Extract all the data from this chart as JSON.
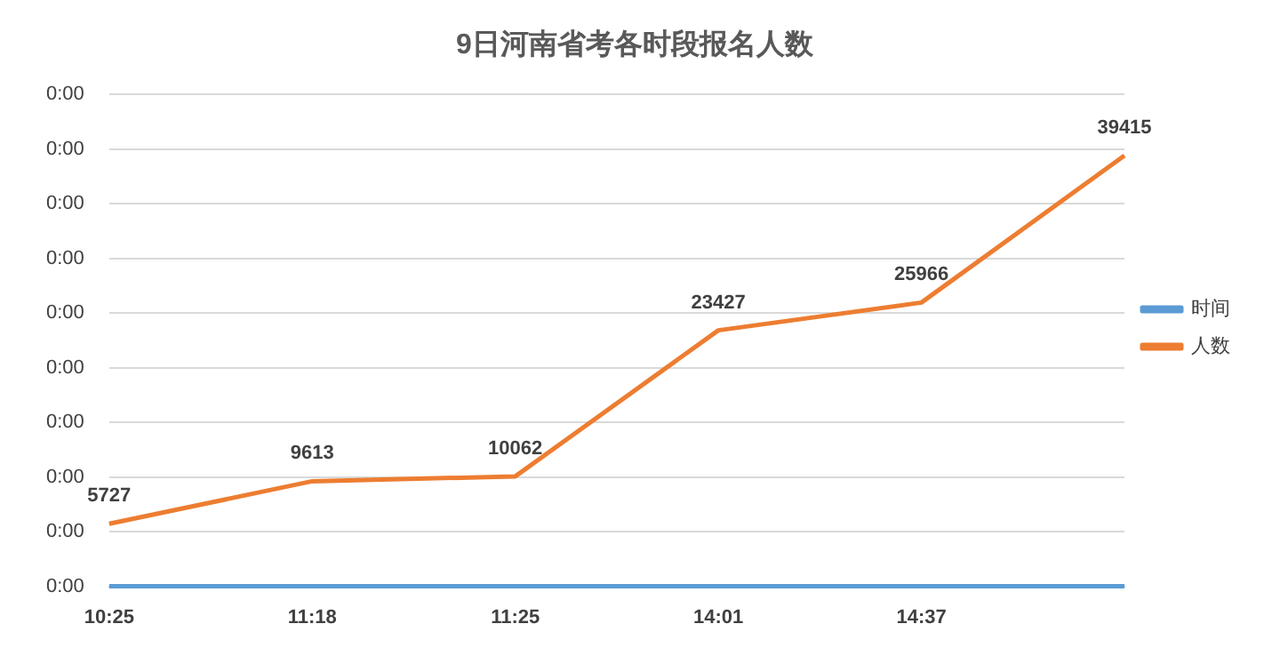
{
  "chart_data": {
    "type": "line",
    "title": "9日河南省考各时段报名人数",
    "categories": [
      "10:25",
      "11:18",
      "11:25",
      "14:01",
      "14:37",
      null
    ],
    "series": [
      {
        "name": "时间",
        "color": "#5b9bd5",
        "values": [
          0,
          0,
          0,
          0,
          0,
          0
        ]
      },
      {
        "name": "人数",
        "color": "#ed7d31",
        "values": [
          5727,
          9613,
          10062,
          23427,
          25966,
          39415
        ],
        "value_labels": [
          "5727",
          "9613",
          "10062",
          "23427",
          "25966",
          "39415"
        ]
      }
    ],
    "annotations": [
      "0:00",
      "0:00",
      "0:00",
      "0:00",
      "0:00",
      "0:00",
      "0:00",
      "0:00",
      "0:00",
      "0:00"
    ],
    "grid": "y",
    "legend": "right",
    "marker": "none",
    "line_style": "solid"
  }
}
